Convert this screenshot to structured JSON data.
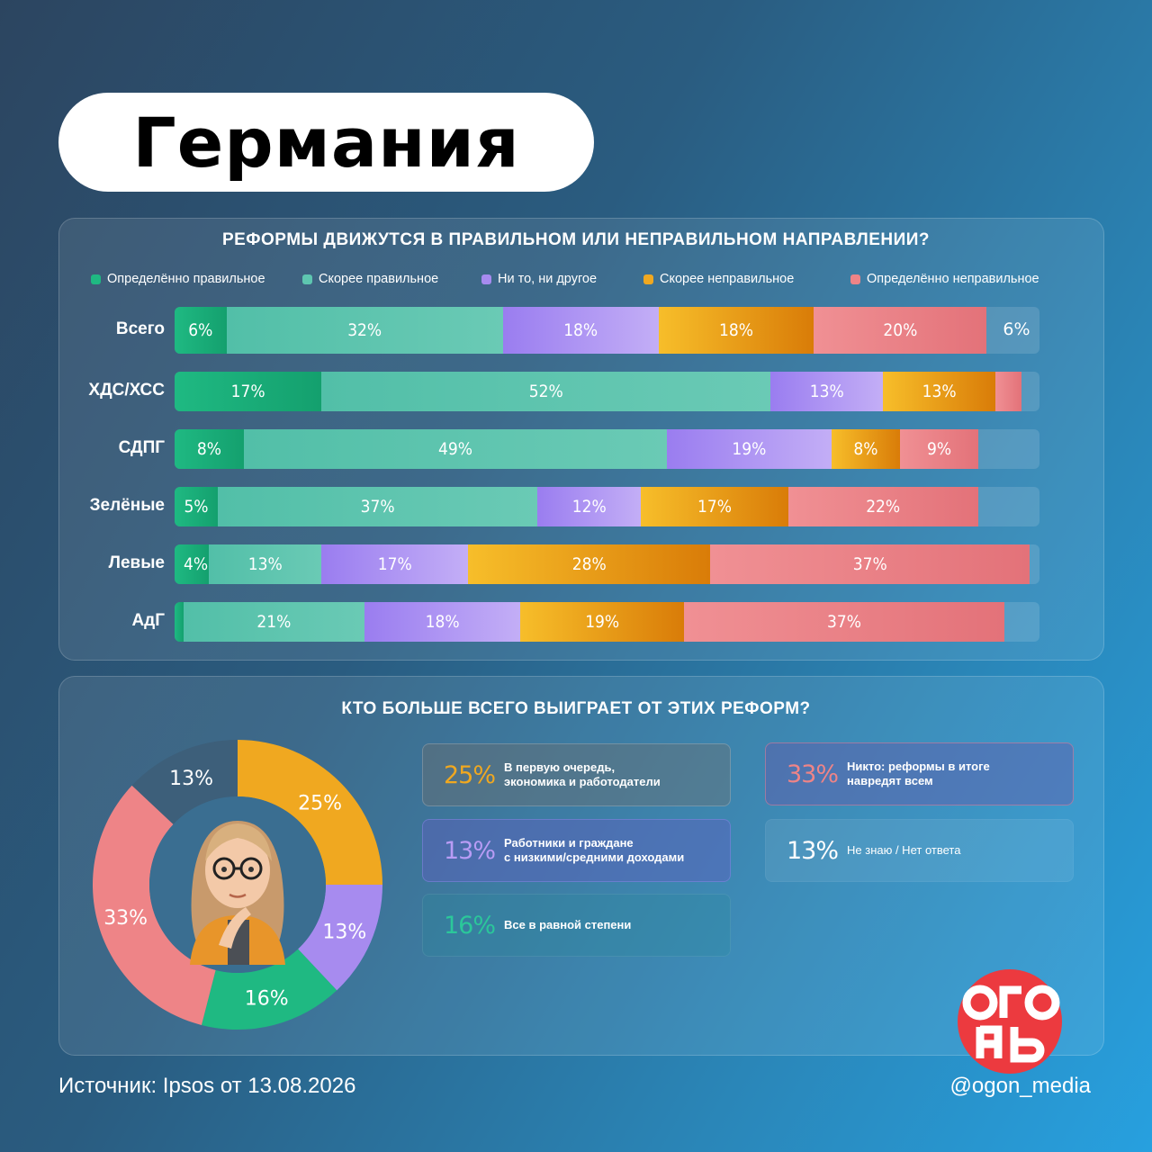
{
  "title": "Германия",
  "colors": {
    "def_right": "#1fb982",
    "rather_right": "#5ec6b0",
    "neither": "#a78bef",
    "rather_wrong": "#f0a820",
    "def_wrong": "#ee8487"
  },
  "chart_data": [
    {
      "type": "bar",
      "orientation": "horizontal",
      "stacked": true,
      "title": "РЕФОРМЫ ДВИЖУТСЯ В ПРАВИЛЬНОМ ИЛИ НЕПРАВИЛЬНОМ НАПРАВЛЕНИИ?",
      "categories": [
        "Всего",
        "ХДС/ХСС",
        "СДПГ",
        "Зелёные",
        "Левые",
        "АдГ"
      ],
      "series": [
        {
          "name": "Определённо правильное",
          "values": [
            6,
            17,
            8,
            5,
            4,
            1
          ],
          "labels": [
            "6%",
            "17%",
            "8%",
            "5%",
            "4%",
            "1%"
          ]
        },
        {
          "name": "Скорее правильное",
          "values": [
            32,
            52,
            49,
            37,
            13,
            21
          ],
          "labels": [
            "32%",
            "52%",
            "49%",
            "37%",
            "13%",
            "21%"
          ]
        },
        {
          "name": "Ни то, ни другое",
          "values": [
            18,
            13,
            19,
            12,
            17,
            18
          ],
          "labels": [
            "18%",
            "13%",
            "19%",
            "12%",
            "17%",
            "18%"
          ]
        },
        {
          "name": "Скорее неправильное",
          "values": [
            18,
            13,
            8,
            17,
            28,
            19
          ],
          "labels": [
            "18%",
            "13%",
            "8%",
            "17%",
            "28%",
            "19%"
          ]
        },
        {
          "name": "Определённо неправильное",
          "values": [
            20,
            3,
            9,
            22,
            37,
            37
          ],
          "labels": [
            "20%",
            "",
            "9%",
            "22%",
            "37%",
            "37%"
          ]
        }
      ],
      "remainder_labels": [
        "6%",
        "",
        "",
        "",
        "",
        ""
      ],
      "legend": "top"
    },
    {
      "type": "pie",
      "donut": true,
      "title": "КТО БОЛЬШЕ ВСЕГО ВЫИГРАЕТ ОТ ЭТИХ РЕФОРМ?",
      "slices": [
        {
          "label": "В первую очередь, экономика и работодатели",
          "value": 25,
          "text": "25%",
          "color": "#f0a820"
        },
        {
          "label": "Работники и граждане с низкими/средними доходами",
          "value": 13,
          "text": "13%",
          "color": "#a78bef"
        },
        {
          "label": "Все в равной степени",
          "value": 16,
          "text": "16%",
          "color": "#1fb982"
        },
        {
          "label": "Никто: реформы в итоге навредят всем",
          "value": 33,
          "text": "33%",
          "color": "#ee8487"
        },
        {
          "label": "Не знаю / Нет ответа",
          "value": 13,
          "text": "13%",
          "color": "#3d5f7a"
        }
      ]
    }
  ],
  "cards": [
    {
      "pct": "25%",
      "line1": "В первую очередь,",
      "line2": "экономика и работодатели",
      "pct_color": "#f0a820"
    },
    {
      "pct": "13%",
      "line1": "Работники и граждане",
      "line2": "с низкими/средними доходами",
      "pct_color": "#b89cf5"
    },
    {
      "pct": "16%",
      "line1": "Все в равной степени",
      "line2": "",
      "pct_color": "#2bc79a"
    },
    {
      "pct": "33%",
      "line1": "Никто: реформы в итоге",
      "line2": "наврeдят всем",
      "pct_color": "#ee8487"
    },
    {
      "pct": "13%",
      "line1": "Не знаю / Нет ответа",
      "line2": "",
      "pct_color": "#ffffff"
    }
  ],
  "footer": {
    "source": "Источник: Ipsos от 13.08.2026",
    "handle": "@ogon_media",
    "logo_text": "ОГОНЬ"
  }
}
